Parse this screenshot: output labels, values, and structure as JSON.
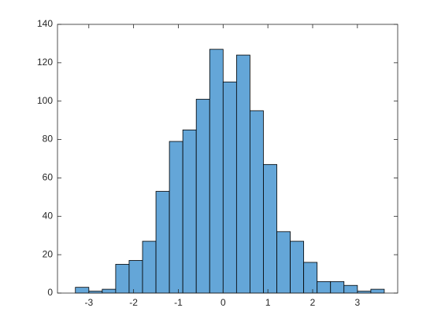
{
  "chart_data": {
    "type": "histogram",
    "bins": [
      -3.3,
      -3.0,
      -2.7,
      -2.4,
      -2.1,
      -1.8,
      -1.5,
      -1.2,
      -0.9,
      -0.6,
      -0.3,
      0,
      0.3,
      0.6,
      0.9,
      1.2,
      1.5,
      1.8,
      2.1,
      2.4,
      2.7,
      3.0,
      3.3,
      3.6
    ],
    "values": [
      3,
      1,
      2,
      15,
      17,
      27,
      53,
      79,
      85,
      101,
      127,
      110,
      124,
      95,
      67,
      32,
      27,
      16,
      6,
      6,
      4,
      1,
      2
    ],
    "color": "#64a6d8",
    "xlim": [
      -3.7,
      3.9
    ],
    "xticks": [
      -3,
      -2,
      -1,
      0,
      1,
      2,
      3
    ],
    "ylim": [
      0,
      140
    ],
    "yticks": [
      0,
      20,
      40,
      60,
      80,
      100,
      120,
      140
    ]
  }
}
